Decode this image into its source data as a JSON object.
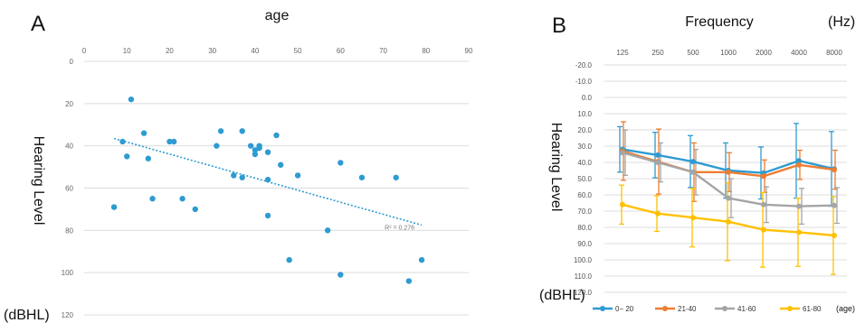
{
  "chart_data": [
    {
      "panel": "A",
      "type": "scatter",
      "title": "age",
      "ylabel": "Hearing Level",
      "yunit": "(dBHL)",
      "xlim": [
        0,
        90
      ],
      "ylim": [
        0,
        120
      ],
      "y_reversed": true,
      "x_ticks": [
        "0",
        "10",
        "20",
        "30",
        "40",
        "50",
        "60",
        "70",
        "80",
        "90"
      ],
      "y_ticks": [
        "0",
        "20",
        "40",
        "60",
        "80",
        "100",
        "120"
      ],
      "grid": "horizontal",
      "marker_color": "#2E9BD1",
      "points": [
        {
          "x": 7,
          "y": 69
        },
        {
          "x": 9,
          "y": 38
        },
        {
          "x": 10,
          "y": 45
        },
        {
          "x": 11,
          "y": 18
        },
        {
          "x": 14,
          "y": 34
        },
        {
          "x": 15,
          "y": 46
        },
        {
          "x": 16,
          "y": 65
        },
        {
          "x": 20,
          "y": 38
        },
        {
          "x": 21,
          "y": 38
        },
        {
          "x": 23,
          "y": 65
        },
        {
          "x": 26,
          "y": 70
        },
        {
          "x": 31,
          "y": 40
        },
        {
          "x": 32,
          "y": 33
        },
        {
          "x": 35,
          "y": 54
        },
        {
          "x": 37,
          "y": 33
        },
        {
          "x": 37,
          "y": 55
        },
        {
          "x": 39,
          "y": 40
        },
        {
          "x": 40,
          "y": 44
        },
        {
          "x": 40,
          "y": 42
        },
        {
          "x": 41,
          "y": 40
        },
        {
          "x": 41,
          "y": 41
        },
        {
          "x": 43,
          "y": 43
        },
        {
          "x": 43,
          "y": 56
        },
        {
          "x": 43,
          "y": 73
        },
        {
          "x": 45,
          "y": 35
        },
        {
          "x": 46,
          "y": 49
        },
        {
          "x": 48,
          "y": 94
        },
        {
          "x": 50,
          "y": 54
        },
        {
          "x": 57,
          "y": 80
        },
        {
          "x": 60,
          "y": 48
        },
        {
          "x": 60,
          "y": 101
        },
        {
          "x": 65,
          "y": 55
        },
        {
          "x": 73,
          "y": 55
        },
        {
          "x": 76,
          "y": 104
        },
        {
          "x": 79,
          "y": 94
        }
      ],
      "trendline": {
        "x": [
          7,
          79
        ],
        "y": [
          36.5,
          77.5
        ],
        "label": "R² = 0.276"
      }
    },
    {
      "panel": "B",
      "type": "line",
      "title": "Frequency",
      "xunit": "(Hz)",
      "ylabel": "Hearing Level",
      "yunit": "(dBHL)",
      "categories": [
        "125",
        "250",
        "500",
        "1000",
        "2000",
        "4000",
        "8000"
      ],
      "ylim": [
        -20,
        120
      ],
      "y_reversed": true,
      "y_ticks": [
        "-20.0",
        "-10.0",
        "0.0",
        "10.0",
        "20.0",
        "30.0",
        "40.0",
        "50.0",
        "60.0",
        "70.0",
        "80.0",
        "90.0",
        "100.0",
        "110.0",
        "120.0"
      ],
      "grid": "horizontal",
      "legend_position": "bottom",
      "legend_unit": "(age)",
      "series": [
        {
          "name": "0− 20",
          "color": "#2E9BD1",
          "values": [
            32,
            35.5,
            39.5,
            45,
            46.5,
            39,
            44
          ],
          "errors": [
            14,
            14,
            16,
            17,
            16,
            23,
            23
          ]
        },
        {
          "name": "21-40",
          "color": "#ED7D31",
          "values": [
            33,
            39.5,
            46,
            46,
            48.5,
            41.5,
            44.5
          ],
          "errors": [
            18,
            20,
            18,
            12,
            10,
            9,
            12
          ]
        },
        {
          "name": "41-60",
          "color": "#A5A5A5",
          "values": [
            34,
            40,
            46,
            62,
            66,
            67,
            66.5
          ],
          "errors": [
            14,
            12,
            14,
            12,
            11,
            11,
            11
          ]
        },
        {
          "name": "61-80",
          "color": "#FFC000",
          "values": [
            66,
            71.5,
            74,
            76.5,
            81.5,
            83,
            85
          ],
          "errors": [
            12,
            11,
            18,
            24,
            23,
            21,
            24
          ]
        }
      ]
    }
  ]
}
